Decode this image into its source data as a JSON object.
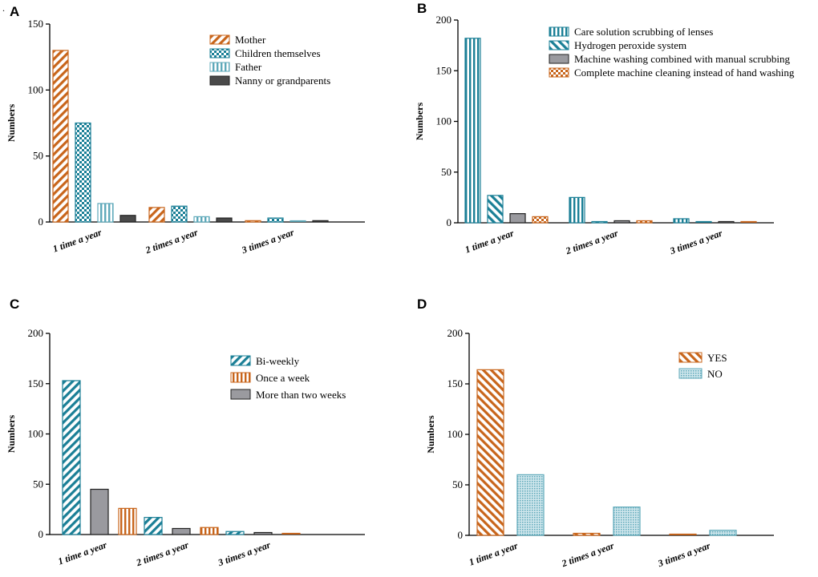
{
  "colors": {
    "orange": "#c8651b",
    "teal": "#1a7f96",
    "gray": "#9a9a9f",
    "dark": "#4a4a4a",
    "light_teal": "#5fa9ba"
  },
  "corner_mark": ".",
  "chart_data": [
    {
      "panel": "A",
      "type": "bar",
      "ylabel": "Numbers",
      "xlabel": "",
      "ylim": [
        0,
        150
      ],
      "yticks": [
        0,
        50,
        100,
        150
      ],
      "categories": [
        "1 time a year",
        "2 times a year",
        "3 times a year"
      ],
      "legend_position": "top-right",
      "series": [
        {
          "name": "Mother",
          "values": [
            130,
            11,
            1
          ],
          "pattern": "diag",
          "color": "#c8651b"
        },
        {
          "name": "Children themselves",
          "values": [
            75,
            12,
            3
          ],
          "pattern": "check",
          "color": "#1a7f96"
        },
        {
          "name": "Father",
          "values": [
            14,
            4,
            0
          ],
          "pattern": "vlines",
          "color": "#5fa9ba"
        },
        {
          "name": "Nanny or grandparents",
          "values": [
            5,
            3,
            1
          ],
          "pattern": "solid",
          "color": "#4a4a4a"
        }
      ]
    },
    {
      "panel": "B",
      "type": "bar",
      "ylabel": "Numbers",
      "xlabel": "",
      "ylim": [
        0,
        200
      ],
      "yticks": [
        0,
        50,
        100,
        150,
        200
      ],
      "categories": [
        "1 time a year",
        "2 times a year",
        "3 times a year"
      ],
      "legend_position": "top-right",
      "series": [
        {
          "name": "Care solution scrubbing of lenses",
          "values": [
            182,
            25,
            4
          ],
          "pattern": "vlines",
          "color": "#1a7f96"
        },
        {
          "name": "Hydrogen peroxide system",
          "values": [
            27,
            1,
            0
          ],
          "pattern": "diagrev",
          "color": "#1a7f96"
        },
        {
          "name": "Machine washing combined with manual scrubbing",
          "values": [
            9,
            2,
            1
          ],
          "pattern": "solid",
          "color": "#9a9a9f"
        },
        {
          "name": "Complete machine cleaning instead of hand washing",
          "values": [
            6,
            2,
            0
          ],
          "pattern": "check",
          "color": "#c8651b"
        }
      ]
    },
    {
      "panel": "C",
      "type": "bar",
      "ylabel": "Numbers",
      "xlabel": "",
      "ylim": [
        0,
        200
      ],
      "yticks": [
        0,
        50,
        100,
        150,
        200
      ],
      "categories": [
        "1 time a year",
        "2 times a year",
        "3 times a year"
      ],
      "legend_position": "top-right",
      "series": [
        {
          "name": "Bi-weekly",
          "values": [
            153,
            17,
            3
          ],
          "pattern": "diag",
          "color": "#1a7f96"
        },
        {
          "name": "More than two weeks",
          "values": [
            45,
            6,
            2
          ],
          "pattern": "solid",
          "color": "#9a9a9f"
        },
        {
          "name": "Once a week",
          "values": [
            26,
            7,
            0
          ],
          "pattern": "vlines",
          "color": "#c8651b"
        }
      ],
      "legend_order": [
        "Bi-weekly",
        "Once a week",
        "More than two weeks"
      ]
    },
    {
      "panel": "D",
      "type": "bar",
      "ylabel": "Numbers",
      "xlabel": "",
      "ylim": [
        0,
        200
      ],
      "yticks": [
        0,
        50,
        100,
        150,
        200
      ],
      "categories": [
        "1 time a year",
        "2 times a year",
        "3 times a year"
      ],
      "legend_position": "top-right",
      "series": [
        {
          "name": "YES",
          "values": [
            164,
            2,
            0
          ],
          "pattern": "diagrev",
          "color": "#c8651b"
        },
        {
          "name": "NO",
          "values": [
            60,
            28,
            5
          ],
          "pattern": "dots",
          "color": "#5fa9ba"
        }
      ]
    }
  ]
}
